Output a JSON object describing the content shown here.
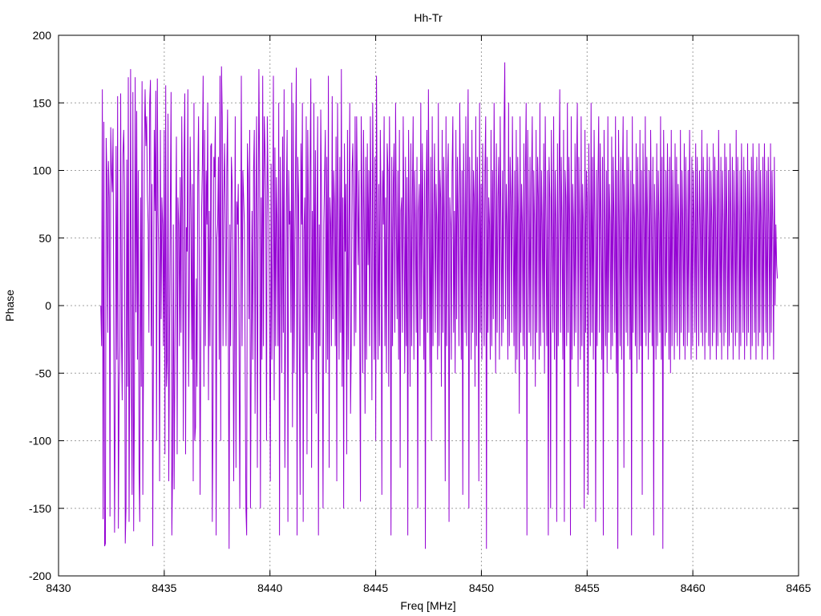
{
  "chart_data": {
    "type": "line",
    "title": "Hh-Tr",
    "xlabel": "Freq [MHz]",
    "ylabel": "Phase",
    "xlim": [
      8430,
      8465
    ],
    "ylim": [
      -200,
      200
    ],
    "xticks": [
      8430,
      8435,
      8440,
      8445,
      8450,
      8455,
      8460,
      8465
    ],
    "yticks": [
      -200,
      -150,
      -100,
      -50,
      0,
      50,
      100,
      150,
      200
    ],
    "grid": true,
    "series_color": "#9400d3",
    "series": [
      {
        "x_start": 8432.0,
        "x_end": 8464.0,
        "values": [
          0,
          -30,
          160,
          -158,
          136,
          -178,
          -176,
          124,
          96,
          -20,
          107,
          80,
          -156,
          132,
          101,
          84,
          131,
          -20,
          -168,
          -60,
          118,
          -40,
          155,
          -165,
          -64,
          -30,
          157,
          -20,
          -70,
          112,
          130,
          89,
          -176,
          -150,
          108,
          -60,
          169,
          -160,
          -20,
          175,
          -60,
          -140,
          158,
          -167,
          -70,
          169,
          -5,
          144,
          -40,
          100,
          -120,
          -160,
          80,
          -60,
          166,
          -140,
          -30,
          120,
          160,
          118,
          140,
          82,
          60,
          -20,
          150,
          167,
          -30,
          90,
          -178,
          -10,
          130,
          70,
          159,
          -100,
          168,
          68,
          30,
          -130,
          130,
          -10,
          80,
          60,
          -30,
          130,
          -110,
          163,
          -60,
          -40,
          142,
          -130,
          -20,
          70,
          158,
          -170,
          -120,
          60,
          -136,
          -40,
          50,
          125,
          -110,
          80,
          60,
          -30,
          95,
          -20,
          140,
          65,
          -100,
          110,
          157,
          -110,
          58,
          40,
          160,
          -60,
          20,
          125,
          70,
          -40,
          90,
          -130,
          150,
          -100,
          -90,
          20,
          -60,
          95,
          140,
          20,
          -140,
          -20,
          70,
          105,
          170,
          -60,
          130,
          -30,
          100,
          60,
          150,
          -70,
          70,
          -30,
          118,
          120,
          -160,
          -80,
          110,
          95,
          140,
          -170,
          50,
          60,
          110,
          -40,
          170,
          -100,
          177,
          140,
          -30,
          80,
          120,
          60,
          -30,
          100,
          145,
          -20,
          -180,
          60,
          -30,
          110,
          90,
          40,
          -130,
          -10,
          140,
          -120,
          77,
          60,
          90,
          -20,
          -150,
          10,
          170,
          -30,
          100,
          80,
          60,
          -40,
          -150,
          -170,
          120,
          95,
          -10,
          130,
          -150,
          -30,
          70,
          -40,
          100,
          130,
          -80,
          70,
          140,
          -120,
          55,
          175,
          95,
          -150,
          80,
          -40,
          170,
          -30,
          140,
          115,
          80,
          -100,
          140,
          90,
          60,
          -20,
          -130,
          105,
          -40,
          60,
          170,
          -70,
          117,
          -30,
          95,
          60,
          -30,
          150,
          -170,
          110,
          40,
          -50,
          125,
          -20,
          160,
          -120,
          -10,
          80,
          130,
          -160,
          100,
          60,
          70,
          -20,
          165,
          -90,
          150,
          -50,
          40,
          100,
          176,
          -170,
          110,
          80,
          -30,
          -140,
          120,
          60,
          150,
          -160,
          55,
          80,
          -50,
          140,
          -110,
          130,
          70,
          -30,
          100,
          168,
          -120,
          70,
          -40,
          150,
          -20,
          115,
          -80,
          60,
          140,
          -170,
          60,
          -30,
          145,
          80,
          -10,
          -150,
          60,
          95,
          130,
          -50,
          110,
          -40,
          170,
          -120,
          80,
          60,
          -30,
          155,
          -10,
          100,
          75,
          -30,
          125,
          -130,
          150,
          60,
          -40,
          110,
          -20,
          175,
          -60,
          80,
          -150,
          120,
          40,
          90,
          -110,
          130,
          -40,
          60,
          150,
          -80,
          -30,
          100,
          120,
          60,
          -30,
          140,
          -20,
          140,
          80,
          30,
          100,
          -10,
          -145,
          140,
          80,
          -50,
          130,
          60,
          -80,
          110,
          -40,
          120,
          30,
          100,
          -30,
          140,
          60,
          -70,
          150,
          80,
          -40,
          110,
          -100,
          170,
          60,
          -40,
          90,
          -30,
          130,
          70,
          -140,
          100,
          60,
          140,
          -30,
          80,
          -50,
          120,
          100,
          -60,
          140,
          60,
          -170,
          110,
          -30,
          90,
          120,
          -20,
          150,
          60,
          -10,
          100,
          -40,
          130,
          -120,
          70,
          80,
          -20,
          140,
          60,
          -50,
          110,
          -30,
          95,
          -170,
          130,
          60,
          -60,
          120,
          -30,
          80,
          140,
          -40,
          100,
          60,
          -20,
          110,
          -150,
          70,
          90,
          -30,
          150,
          -10,
          120,
          60,
          -40,
          100,
          -180,
          80,
          130,
          -20,
          160,
          60,
          -50,
          110,
          -100,
          140,
          -30,
          70,
          120,
          -20,
          90,
          60,
          -40,
          150,
          -30,
          100,
          80,
          -60,
          130,
          -20,
          110,
          60,
          -130,
          140,
          -30,
          95,
          120,
          -160,
          80,
          60,
          -40,
          100,
          140,
          -20,
          70,
          -50,
          130,
          -10,
          110,
          60,
          -30,
          150,
          80,
          -40,
          100,
          -140,
          120,
          60,
          -20,
          140,
          -30,
          90,
          160,
          -150,
          110,
          60,
          -40,
          130,
          -20,
          100,
          80,
          -60,
          140,
          -30,
          110,
          60,
          -130,
          150,
          -20,
          90,
          -40,
          120,
          60,
          -30,
          100,
          140,
          -180,
          110,
          -20,
          80,
          60,
          -40,
          130,
          -30,
          100,
          -10,
          150,
          60,
          -50,
          120,
          -20,
          80,
          110,
          -40,
          140,
          60,
          -30,
          100,
          -20,
          130,
          180,
          -10,
          90,
          60,
          -40,
          150,
          -30,
          110,
          80,
          -20,
          140,
          60,
          -30,
          100,
          -50,
          130,
          -40,
          110,
          60,
          -80,
          140,
          -20,
          90,
          60,
          -30,
          120,
          -40,
          100,
          150,
          -170,
          130,
          60,
          -20,
          110,
          -30,
          90,
          140,
          -40,
          100,
          60,
          -60,
          130,
          -20,
          110,
          80,
          -40,
          150,
          -30,
          100,
          60,
          -20,
          120,
          -50,
          140,
          60,
          -30,
          100,
          -170,
          110,
          80,
          -150,
          130,
          60,
          -20,
          140,
          -40,
          100,
          60,
          -160,
          120,
          -30,
          90,
          160,
          -20,
          110,
          60,
          -40,
          130,
          -160,
          100,
          80,
          -30,
          150,
          -20,
          110,
          60,
          -170,
          140,
          -40,
          90,
          60,
          -30,
          120,
          -20,
          100,
          150,
          -60,
          110,
          60,
          -40,
          140,
          -30,
          90,
          60,
          -150,
          130,
          -20,
          100,
          80,
          -140,
          120,
          60,
          -30,
          150,
          -20,
          110,
          -40,
          130,
          60,
          -160,
          100,
          -30,
          90,
          140,
          -20,
          120,
          60,
          -40,
          110,
          -170,
          130,
          60,
          -30,
          100,
          -50,
          140,
          -20,
          90,
          60,
          -40,
          125,
          -30,
          110,
          60,
          -20,
          140,
          -50,
          100,
          -180,
          130,
          60,
          -30,
          110,
          -40,
          90,
          140,
          -120,
          100,
          60,
          -20,
          130,
          -30,
          110,
          60,
          -40,
          100,
          -170,
          140,
          -20,
          90,
          60,
          -30,
          120,
          -50,
          110,
          60,
          -40,
          130,
          -30,
          100,
          -140,
          120,
          60,
          -20,
          140,
          -30,
          110,
          60,
          -40,
          100,
          -20,
          130,
          60,
          -30,
          110,
          -170,
          90,
          60,
          -40,
          120,
          -30,
          100,
          60,
          -20,
          140,
          -40,
          110,
          -180,
          130,
          60,
          -30,
          100,
          -20,
          120,
          60,
          -40,
          110,
          -50,
          130,
          -30,
          100,
          60,
          -40,
          120,
          -20,
          110,
          -30,
          90,
          60,
          -40,
          130,
          -20,
          100,
          60,
          -30,
          120,
          -40,
          110,
          60,
          -30,
          100,
          -20,
          130,
          60,
          -40,
          110,
          -30,
          100,
          60,
          -20,
          120,
          -40,
          110,
          60,
          -30,
          100,
          60,
          -20,
          130,
          -30,
          110,
          60,
          -40,
          100,
          -20,
          120,
          60,
          -30,
          110,
          -40,
          100,
          60,
          -30,
          120,
          -20,
          110,
          60,
          -40,
          100,
          -30,
          130,
          60,
          -20,
          110,
          -40,
          100,
          60,
          -30,
          120,
          -20,
          110,
          60,
          -40,
          100,
          -30,
          120,
          60,
          -20,
          110,
          -40,
          100,
          60,
          -30,
          130,
          -20,
          110,
          60,
          -40,
          100,
          -30,
          120,
          60,
          -20,
          110,
          -40,
          100,
          60,
          -30,
          120,
          -20,
          100,
          60,
          -40,
          110,
          -30,
          120,
          60,
          -20,
          100,
          -40,
          110,
          60,
          -30,
          120,
          -20,
          100,
          60,
          -40,
          110,
          -30,
          120,
          60,
          -20,
          100,
          -40,
          110,
          60,
          -30,
          120,
          -20,
          100,
          60,
          -40,
          110,
          0,
          60,
          30,
          20
        ]
      }
    ]
  }
}
